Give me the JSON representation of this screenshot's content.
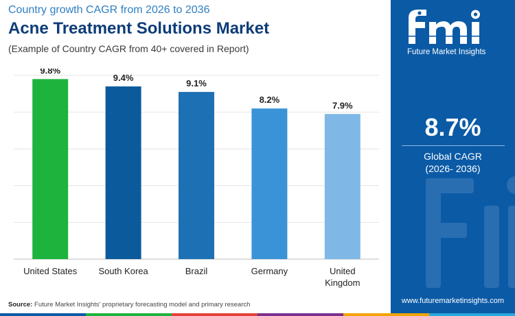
{
  "header": {
    "kicker": "Country growth CAGR from 2026 to 2036",
    "title": "Acne Treatment Solutions Market",
    "subtitle": "(Example of Country CAGR from 40+ covered in Report)"
  },
  "source": {
    "label": "Source:",
    "text": "Future Market Insights' proprietary forecasting model and primary research"
  },
  "sidebar": {
    "logo_text": "fmi",
    "brand": "Future Market Insights",
    "value": "8.7%",
    "label": "Global CAGR",
    "period": "(2026- 2036)",
    "url": "www.futuremarketinsights.com"
  },
  "chart_data": {
    "type": "bar",
    "categories": [
      "United States",
      "South Korea",
      "Brazil",
      "Germany",
      "United Kingdom"
    ],
    "values": [
      9.8,
      9.4,
      9.1,
      8.2,
      7.9
    ],
    "labels": [
      "9.8%",
      "9.4%",
      "9.1%",
      "8.2%",
      "7.9%"
    ],
    "colors": [
      "#1db33d",
      "#0b5a9c",
      "#1d70b4",
      "#3a93d6",
      "#7fb8e6"
    ],
    "ylim": [
      0,
      10
    ],
    "grid": true,
    "legend": "none"
  },
  "colors": {
    "title": "#0d3c78",
    "kicker": "#2f7fc1",
    "panel": "#0b5aa6",
    "footer": [
      "#0b5aa6",
      "#1db33d",
      "#e2423b",
      "#7b2f8f",
      "#f4a300",
      "#2aa7df"
    ]
  }
}
